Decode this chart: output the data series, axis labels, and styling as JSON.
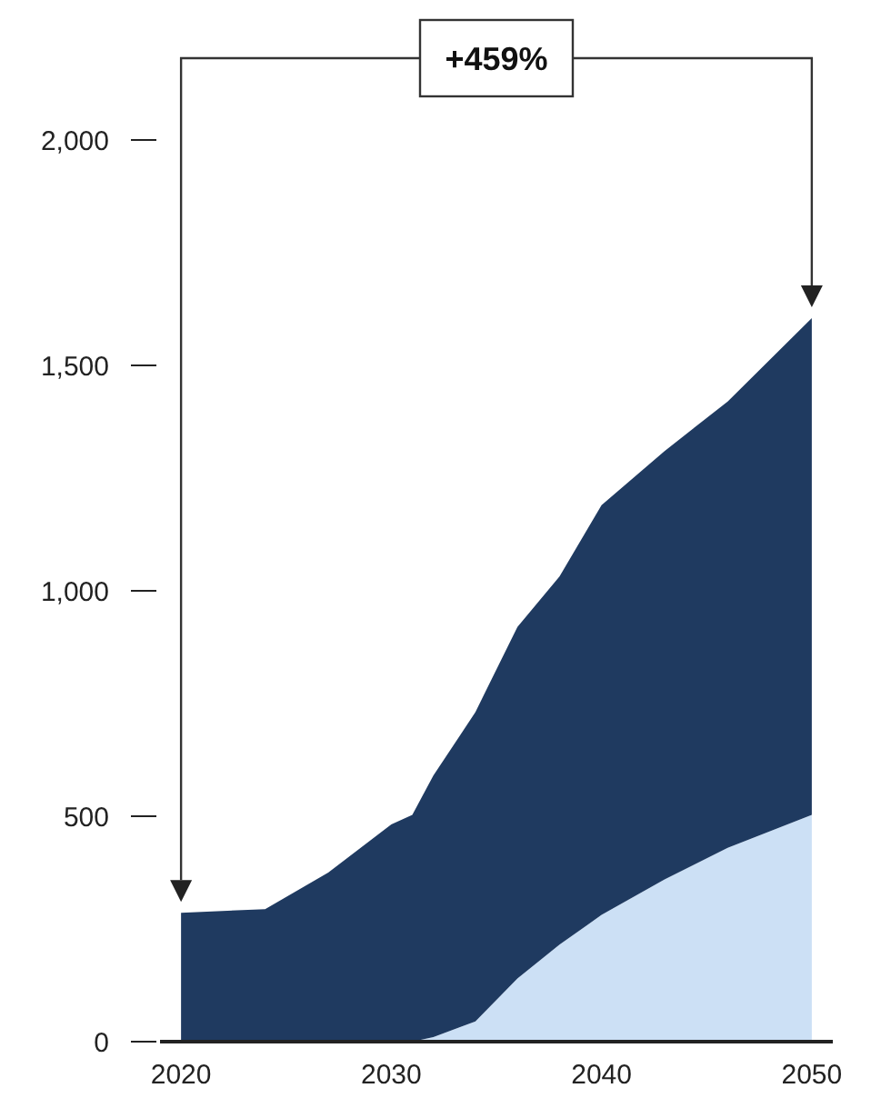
{
  "chart_data": {
    "type": "area",
    "stacked": true,
    "x": [
      2020,
      2024,
      2027,
      2030,
      2031,
      2032,
      2034,
      2036,
      2038,
      2040,
      2043,
      2046,
      2050
    ],
    "series": [
      {
        "color": "#cce0f5",
        "values": [
          0,
          0,
          0,
          0,
          0,
          10,
          45,
          140,
          215,
          281,
          360,
          430,
          503
        ]
      },
      {
        "color": "#1f3a60",
        "values": [
          286,
          294,
          375,
          482,
          503,
          580,
          686,
          780,
          817,
          909,
          950,
          990,
          1102
        ]
      }
    ],
    "xlim": [
      2019,
      2051
    ],
    "xticks": [
      2020,
      2030,
      2040,
      2050
    ],
    "ylim": [
      0,
      2000
    ],
    "yticks": [
      0,
      500,
      {
        "value": 1000,
        "label": "1,000"
      },
      {
        "value": 1500,
        "label": "1,500"
      },
      {
        "value": 2000,
        "label": "2,000"
      }
    ],
    "annotations": [
      "+459%"
    ]
  }
}
